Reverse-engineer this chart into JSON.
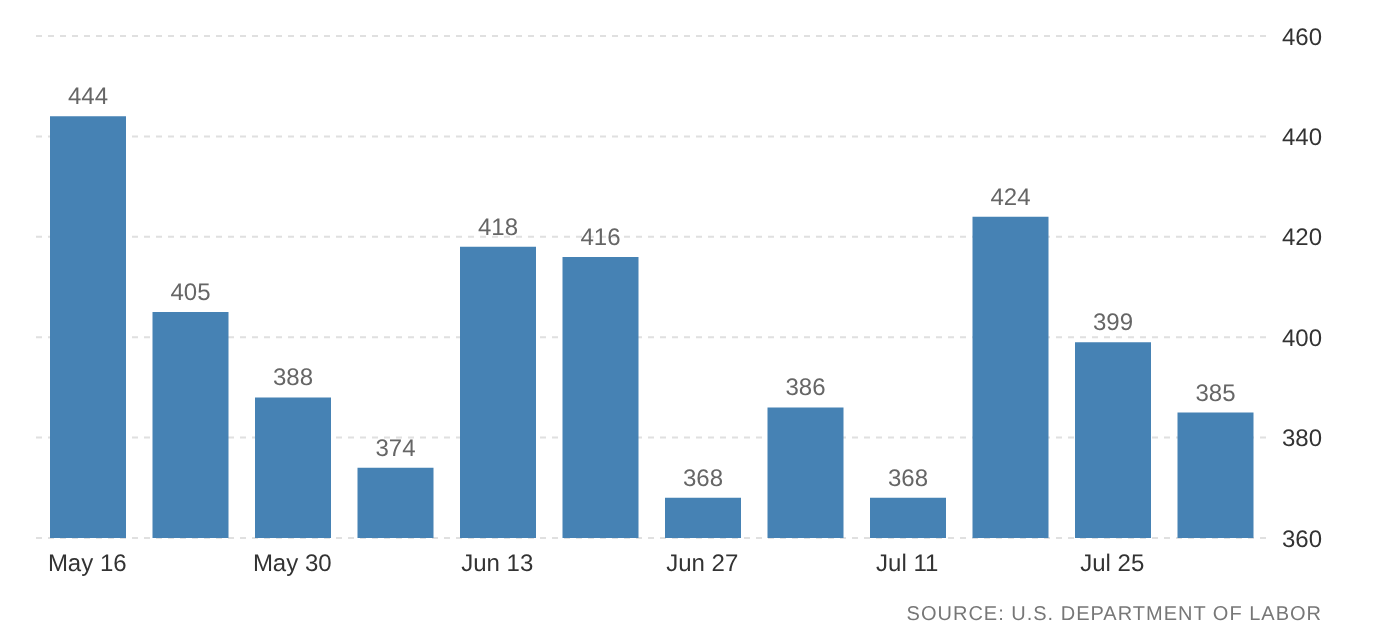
{
  "chart_data": {
    "type": "bar",
    "categories": [
      "May 16",
      null,
      "May 30",
      null,
      "Jun 13",
      null,
      "Jun 27",
      null,
      "Jul 11",
      null,
      "Jul 25",
      null
    ],
    "values": [
      444,
      405,
      388,
      374,
      418,
      416,
      368,
      386,
      368,
      424,
      399,
      385
    ],
    "color": "#4682b4",
    "data_labels": true,
    "ylim": [
      360,
      460
    ],
    "yticks": [
      360,
      380,
      400,
      420,
      440,
      460
    ],
    "grid": "y",
    "annotations": [
      "SOURCE: U.S. DEPARTMENT OF LABOR"
    ]
  }
}
